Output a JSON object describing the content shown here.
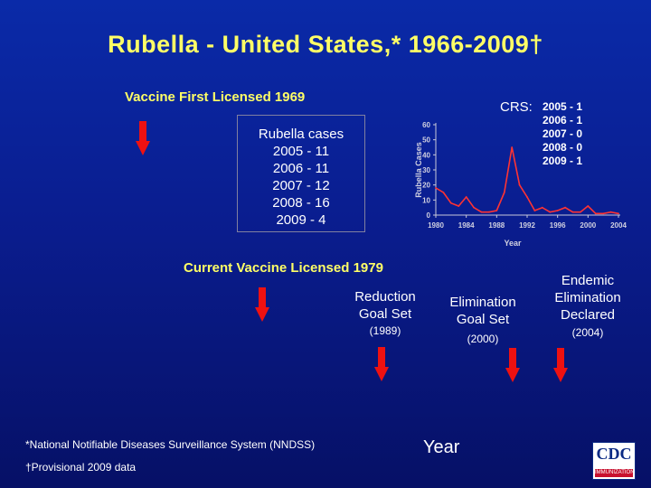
{
  "title": "Rubella - United States,* 1966-2009†",
  "labels": {
    "vaccine_first": "Vaccine First Licensed 1969",
    "current_vaccine": "Current Vaccine Licensed 1979",
    "reduction": "Reduction Goal Set",
    "reduction_year": "(1989)",
    "elimination": "Elimination Goal Set",
    "elimination_year": "(2000)",
    "endemic": "Endemic Elimination Declared",
    "endemic_year": "(2004)",
    "x_axis_big": "Year"
  },
  "cases_box": {
    "heading": "Rubella cases",
    "lines": [
      "2005 - 11",
      "2006 - 11",
      "2007 - 12",
      "2008 - 16",
      "2009  - 4"
    ]
  },
  "crs": {
    "label": "CRS:",
    "lines": [
      "2005 - 1",
      "2006 - 1",
      "2007 - 0",
      "2008 - 0",
      "2009 - 1"
    ]
  },
  "footnotes": {
    "nndss": "*National Notifiable Diseases Surveillance System (NNDSS)",
    "provisional": "†Provisional 2009 data"
  },
  "logo": {
    "text": "CDC",
    "sub": "IMMUNIZATION"
  },
  "colors": {
    "title": "#ffff66",
    "arrow": "#ee1111",
    "line": "#ffffff",
    "bg": "#0a1d8f"
  },
  "chart_data": {
    "type": "line",
    "ylabel": "Rubella Cases",
    "xlabel": "Year",
    "ylim": [
      0,
      60
    ],
    "xlim": [
      1980,
      2004
    ],
    "yticks": [
      0,
      10,
      20,
      30,
      40,
      50,
      60
    ],
    "xticks": [
      1980,
      1984,
      1988,
      1992,
      1996,
      2000,
      2004
    ],
    "x": [
      1980,
      1981,
      1982,
      1983,
      1984,
      1985,
      1986,
      1987,
      1988,
      1989,
      1990,
      1991,
      1992,
      1993,
      1994,
      1995,
      1996,
      1997,
      1998,
      1999,
      2000,
      2001,
      2002,
      2003,
      2004
    ],
    "y": [
      18,
      15,
      8,
      6,
      12,
      5,
      2,
      2,
      3,
      15,
      45,
      20,
      12,
      3,
      5,
      2,
      3,
      5,
      2,
      2,
      6,
      1,
      1,
      2,
      1
    ]
  }
}
